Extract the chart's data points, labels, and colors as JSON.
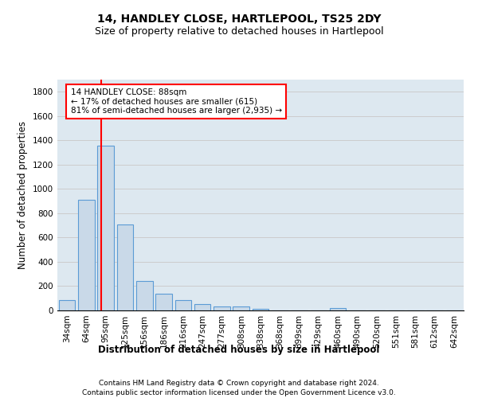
{
  "title": "14, HANDLEY CLOSE, HARTLEPOOL, TS25 2DY",
  "subtitle": "Size of property relative to detached houses in Hartlepool",
  "xlabel": "Distribution of detached houses by size in Hartlepool",
  "ylabel": "Number of detached properties",
  "footer_line1": "Contains HM Land Registry data © Crown copyright and database right 2024.",
  "footer_line2": "Contains public sector information licensed under the Open Government Licence v3.0.",
  "bar_labels": [
    "34sqm",
    "64sqm",
    "95sqm",
    "125sqm",
    "156sqm",
    "186sqm",
    "216sqm",
    "247sqm",
    "277sqm",
    "308sqm",
    "338sqm",
    "368sqm",
    "399sqm",
    "429sqm",
    "460sqm",
    "490sqm",
    "520sqm",
    "551sqm",
    "581sqm",
    "612sqm",
    "642sqm"
  ],
  "bar_values": [
    85,
    910,
    1355,
    710,
    245,
    140,
    85,
    50,
    30,
    30,
    15,
    0,
    0,
    0,
    20,
    0,
    0,
    0,
    0,
    0,
    0
  ],
  "bar_color": "#c9d9e8",
  "bar_edgecolor": "#5b9bd5",
  "vline_color": "red",
  "vline_label": "14 HANDLEY CLOSE: 88sqm",
  "annotation_line1": "← 17% of detached houses are smaller (615)",
  "annotation_line2": "81% of semi-detached houses are larger (2,935) →",
  "annotation_box_color": "red",
  "ylim": [
    0,
    1900
  ],
  "yticks": [
    0,
    200,
    400,
    600,
    800,
    1000,
    1200,
    1400,
    1600,
    1800
  ],
  "grid_color": "#cccccc",
  "bg_color": "#dde8f0",
  "title_fontsize": 10,
  "subtitle_fontsize": 9,
  "axis_label_fontsize": 8.5,
  "tick_fontsize": 7.5,
  "annotation_fontsize": 7.5,
  "footer_fontsize": 6.5
}
